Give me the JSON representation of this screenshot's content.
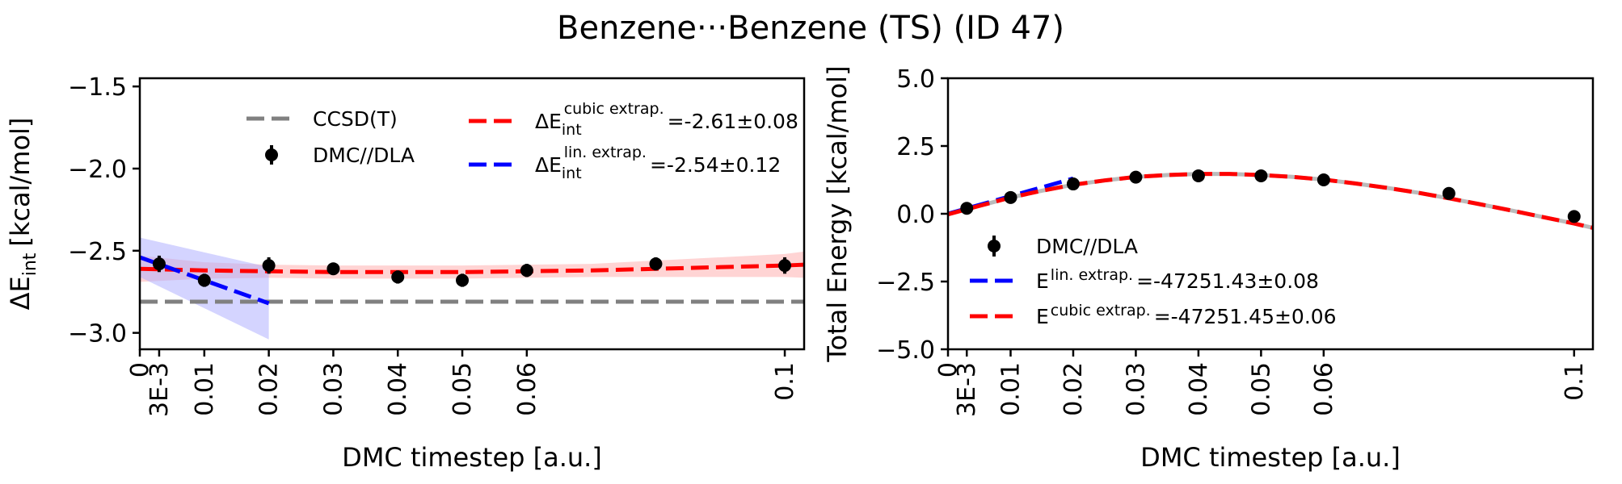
{
  "figure": {
    "title": "Benzene···Benzene (TS) (ID 47)"
  },
  "chart_data": [
    {
      "type": "scatter",
      "panel": "left",
      "xlabel": "DMC timestep [a.u.]",
      "ylabel": "ΔE",
      "ylabel_sub": "int",
      "ylabel_unit": "[kcal/mol]",
      "xlim": [
        0,
        0.103
      ],
      "ylim": [
        -3.1,
        -1.45
      ],
      "x_ticks": [
        0,
        0.003,
        0.01,
        0.02,
        0.03,
        0.04,
        0.05,
        0.06,
        0.1
      ],
      "x_tick_labels": [
        "0",
        "3E-3",
        "0.01",
        "0.02",
        "0.03",
        "0.04",
        "0.05",
        "0.06",
        "0.1"
      ],
      "y_ticks": [
        -3.0,
        -2.5,
        -2.0,
        -1.5
      ],
      "y_tick_labels": [
        "−3.0",
        "−2.5",
        "−2.0",
        "−1.5"
      ],
      "grid": false,
      "legend_position": "top",
      "points": {
        "name": "DMC//DLA",
        "color": "#000000",
        "x": [
          0.003,
          0.01,
          0.02,
          0.03,
          0.04,
          0.05,
          0.06,
          0.08,
          0.1
        ],
        "y": [
          -2.58,
          -2.68,
          -2.59,
          -2.61,
          -2.66,
          -2.68,
          -2.62,
          -2.58,
          -2.59
        ],
        "yerr": [
          0.05,
          0.04,
          0.05,
          0.02,
          0.04,
          0.04,
          0.04,
          0.04,
          0.05
        ]
      },
      "reference": {
        "name": "CCSD(T)",
        "color": "#808080",
        "y": -2.81
      },
      "fits": [
        {
          "name": "cubic extrap.",
          "label_prefix": "ΔE",
          "label_sub": "int",
          "label_sup": "cubic extrap.",
          "label_value": "=-2.61±0.08",
          "color": "#ff0000",
          "band_color": "#ffaaaa",
          "x": [
            0,
            0.01,
            0.02,
            0.03,
            0.04,
            0.05,
            0.06,
            0.07,
            0.08,
            0.09,
            0.1,
            0.103
          ],
          "y": [
            -2.61,
            -2.62,
            -2.625,
            -2.63,
            -2.63,
            -2.63,
            -2.625,
            -2.62,
            -2.61,
            -2.6,
            -2.59,
            -2.585
          ],
          "band_half_width": [
            0.08,
            0.05,
            0.04,
            0.04,
            0.04,
            0.04,
            0.04,
            0.04,
            0.05,
            0.06,
            0.07,
            0.08
          ]
        },
        {
          "name": "lin. extrap.",
          "label_prefix": "ΔE",
          "label_sub": "int",
          "label_sup": "lin. extrap.",
          "label_value": "=-2.54±0.12",
          "color": "#0000ff",
          "band_color": "#aaaaff",
          "x": [
            0,
            0.02
          ],
          "y": [
            -2.54,
            -2.82
          ],
          "band_half_width": [
            0.12,
            0.22
          ]
        }
      ]
    },
    {
      "type": "scatter",
      "panel": "right",
      "xlabel": "DMC timestep [a.u.]",
      "ylabel": "Total Energy [kcal/mol]",
      "xlim": [
        0,
        0.103
      ],
      "ylim": [
        -5.0,
        5.0
      ],
      "x_ticks": [
        0,
        0.003,
        0.01,
        0.02,
        0.03,
        0.04,
        0.05,
        0.06,
        0.1
      ],
      "x_tick_labels": [
        "0",
        "3E-3",
        "0.01",
        "0.02",
        "0.03",
        "0.04",
        "0.05",
        "0.06",
        "0.1"
      ],
      "y_ticks": [
        -5.0,
        -2.5,
        0.0,
        2.5,
        5.0
      ],
      "y_tick_labels": [
        "−5.0",
        "−2.5",
        "0.0",
        "2.5",
        "5.0"
      ],
      "grid": false,
      "legend_position": "lower-left",
      "points": {
        "name": "DMC//DLA",
        "color": "#000000",
        "x": [
          0.003,
          0.01,
          0.02,
          0.03,
          0.04,
          0.05,
          0.06,
          0.08,
          0.1
        ],
        "y": [
          0.2,
          0.6,
          1.1,
          1.35,
          1.4,
          1.4,
          1.25,
          0.75,
          -0.1
        ]
      },
      "fits": [
        {
          "name": "lin. extrap.",
          "label_prefix": "E",
          "label_sup": "lin. extrap.",
          "label_value": "=-47251.43±0.08",
          "color": "#0000ff",
          "x": [
            0,
            0.02
          ],
          "y": [
            0.0,
            1.3
          ]
        },
        {
          "name": "cubic extrap.",
          "label_prefix": "E",
          "label_sup": "cubic extrap.",
          "label_value": "=-47251.45±0.06",
          "color": "#ff0000",
          "x": [
            0,
            0.005,
            0.01,
            0.015,
            0.02,
            0.025,
            0.03,
            0.035,
            0.04,
            0.045,
            0.05,
            0.055,
            0.06,
            0.065,
            0.07,
            0.075,
            0.08,
            0.085,
            0.09,
            0.095,
            0.1,
            0.103
          ],
          "y": [
            -0.02,
            0.29,
            0.6,
            0.85,
            1.07,
            1.23,
            1.36,
            1.43,
            1.47,
            1.47,
            1.43,
            1.36,
            1.26,
            1.12,
            0.96,
            0.78,
            0.57,
            0.35,
            0.12,
            -0.12,
            -0.36,
            -0.52
          ]
        }
      ]
    }
  ]
}
